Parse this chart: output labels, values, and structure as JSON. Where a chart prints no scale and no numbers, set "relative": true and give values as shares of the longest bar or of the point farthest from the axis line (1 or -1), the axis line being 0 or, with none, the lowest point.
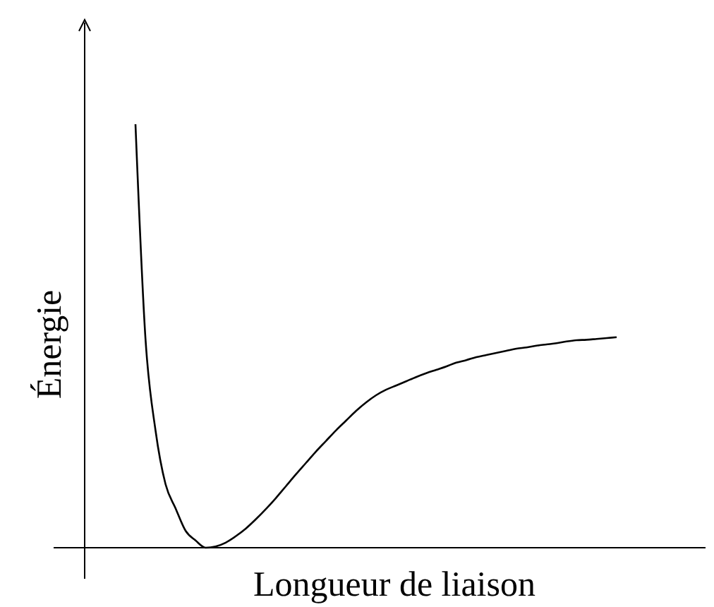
{
  "chart_data": {
    "type": "line",
    "relative": true,
    "xlabel": "Longueur de liaison",
    "ylabel": "Énergie",
    "marker": "none",
    "line_style": "solid",
    "categories": [
      null,
      null,
      null,
      null,
      null,
      null,
      null,
      null,
      null,
      null,
      null,
      null,
      null,
      null,
      null,
      null,
      null,
      null,
      null,
      null,
      null,
      null,
      null,
      null,
      null,
      null,
      null,
      null,
      null,
      null,
      null,
      null,
      null,
      null,
      null,
      null,
      null,
      null,
      null,
      null,
      null,
      null,
      null,
      null,
      null,
      null,
      null,
      null,
      null
    ],
    "series": [
      {
        "color": "#000000",
        "values": [
          1.0,
          0.493,
          0.277,
          0.15,
          0.093,
          0.04,
          0.017,
          0.0,
          0.003,
          0.012,
          0.027,
          0.045,
          0.067,
          0.091,
          0.117,
          0.145,
          0.173,
          0.2,
          0.227,
          0.252,
          0.277,
          0.3,
          0.323,
          0.343,
          0.36,
          0.373,
          0.383,
          0.393,
          0.403,
          0.412,
          0.42,
          0.428,
          0.437,
          0.443,
          0.45,
          0.455,
          0.46,
          0.465,
          0.47,
          0.473,
          0.477,
          0.48,
          0.483,
          0.487,
          0.49,
          0.491,
          0.493,
          0.495,
          0.497
        ]
      }
    ]
  }
}
